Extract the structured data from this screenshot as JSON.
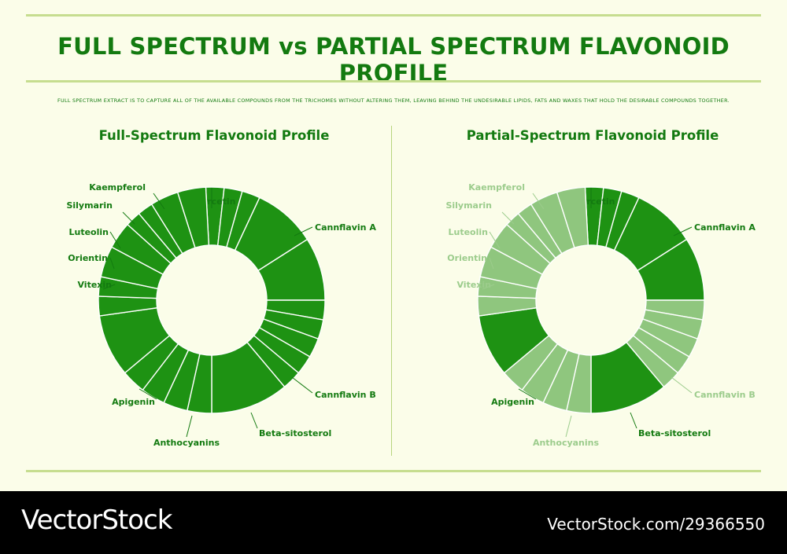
{
  "header": {
    "title": "FULL SPECTRUM vs PARTIAL SPECTRUM FLAVONOID PROFILE",
    "subtitle": "FULL SPECTRUM EXTRACT IS TO CAPTURE ALL OF THE AVAILABLE COMPOUNDS FROM THE TRICHOMES WITHOUT ALTERING THEM, LEAVING BEHIND THE UNDESIRABLE LIPIDS, FATS AND WAXES THAT HOLD THE DESIRABLE COMPOUNDS TOGETHER."
  },
  "colors": {
    "primary_green": "#1e9213",
    "faded_green": "#8fc67e",
    "text_green": "#137a10",
    "faded_text": "#9ccc8c",
    "background": "#fbfde9",
    "rule": "#c6dd8f"
  },
  "panels": [
    {
      "title": "Full-Spectrum Flavonoid Profile",
      "labels": [
        {
          "text": "Quercetin",
          "active": true
        },
        {
          "text": "Cannflavin A",
          "active": true
        },
        {
          "text": "Cannflavin B",
          "active": true
        },
        {
          "text": "Beta-sitosterol",
          "active": true
        },
        {
          "text": "Anthocyanins",
          "active": true
        },
        {
          "text": "Apigenin",
          "active": true
        },
        {
          "text": "Vitexin",
          "active": true
        },
        {
          "text": "Orientin",
          "active": true
        },
        {
          "text": "Luteolin",
          "active": true
        },
        {
          "text": "Silymarin",
          "active": true
        },
        {
          "text": "Kaempferol",
          "active": true
        }
      ]
    },
    {
      "title": "Partial-Spectrum Flavonoid Profile",
      "labels": [
        {
          "text": "Quercetin",
          "active": true
        },
        {
          "text": "Cannflavin A",
          "active": true
        },
        {
          "text": "Cannflavin B",
          "active": false
        },
        {
          "text": "Beta-sitosterol",
          "active": true
        },
        {
          "text": "Anthocyanins",
          "active": false
        },
        {
          "text": "Apigenin",
          "active": true
        },
        {
          "text": "Vitexin",
          "active": false
        },
        {
          "text": "Orientin",
          "active": false
        },
        {
          "text": "Luteolin",
          "active": false
        },
        {
          "text": "Silymarin",
          "active": false
        },
        {
          "text": "Kaempferol",
          "active": false
        }
      ]
    }
  ],
  "footer": {
    "brand": "VectorStock",
    "url": "VectorStock.com/29366550"
  },
  "watermark": "VectorStock"
}
